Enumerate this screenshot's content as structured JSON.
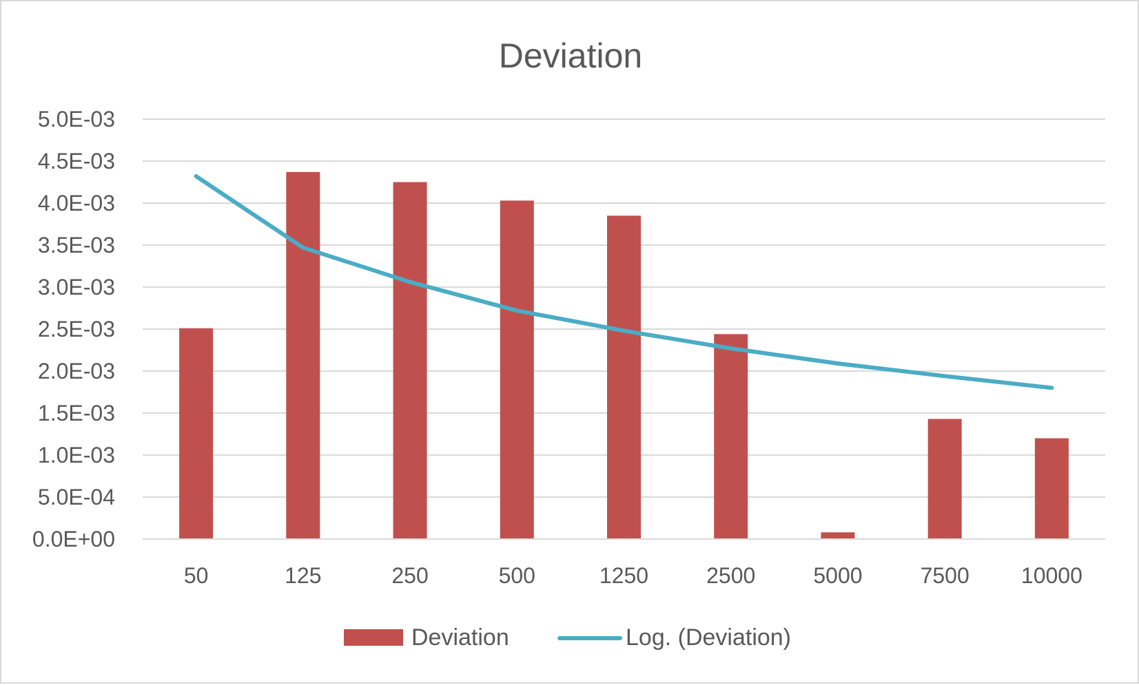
{
  "chart_data": {
    "type": "bar",
    "title": "Deviation",
    "xlabel": "",
    "ylabel": "",
    "categories": [
      "50",
      "125",
      "250",
      "500",
      "1250",
      "2500",
      "5000",
      "7500",
      "10000"
    ],
    "series": [
      {
        "name": "Deviation",
        "type": "bar",
        "color": "#c0504d",
        "values": [
          0.00251,
          0.00437,
          0.00425,
          0.00403,
          0.00385,
          0.00244,
          8e-05,
          0.00143,
          0.0012
        ]
      },
      {
        "name": "Log. (Deviation)",
        "type": "line",
        "trendline": "logarithmic",
        "color": "#4bacc6",
        "values": [
          0.00432,
          0.00347,
          0.00306,
          0.00272,
          0.00248,
          0.00227,
          0.00209,
          0.00194,
          0.0018
        ]
      }
    ],
    "ylim": [
      0,
      0.005
    ],
    "y_ticks": [
      "0.0E+00",
      "5.0E-04",
      "1.0E-03",
      "1.5E-03",
      "2.0E-03",
      "2.5E-03",
      "3.0E-03",
      "3.5E-03",
      "4.0E-03",
      "4.5E-03",
      "5.0E-03"
    ],
    "grid": true,
    "legend": "bottom",
    "colors": {
      "gridline": "#d9d9d9",
      "text": "#595959",
      "border": "#d9d9d9"
    }
  }
}
